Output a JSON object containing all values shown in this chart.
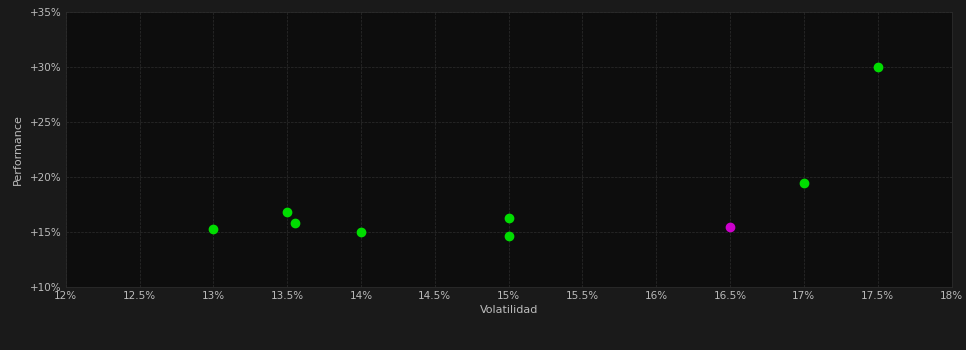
{
  "background_color": "#1a1a1a",
  "plot_bg_color": "#0d0d0d",
  "grid_color": "#2d2d2d",
  "text_color": "#bbbbbb",
  "xlabel": "Volatilidad",
  "ylabel": "Performance",
  "xlim": [
    0.12,
    0.18
  ],
  "ylim": [
    0.1,
    0.35
  ],
  "xticks": [
    0.12,
    0.125,
    0.13,
    0.135,
    0.14,
    0.145,
    0.15,
    0.155,
    0.16,
    0.165,
    0.17,
    0.175,
    0.18
  ],
  "yticks": [
    0.1,
    0.15,
    0.2,
    0.25,
    0.3,
    0.35
  ],
  "green_points": [
    [
      0.175,
      0.3
    ],
    [
      0.17,
      0.195
    ],
    [
      0.13,
      0.153
    ],
    [
      0.135,
      0.168
    ],
    [
      0.1355,
      0.158
    ],
    [
      0.14,
      0.15
    ],
    [
      0.15,
      0.163
    ],
    [
      0.15,
      0.146
    ]
  ],
  "magenta_points": [
    [
      0.165,
      0.155
    ]
  ],
  "green_color": "#00dd00",
  "magenta_color": "#cc00cc",
  "marker_size": 6,
  "tick_fontsize": 7.5,
  "label_fontsize": 8
}
